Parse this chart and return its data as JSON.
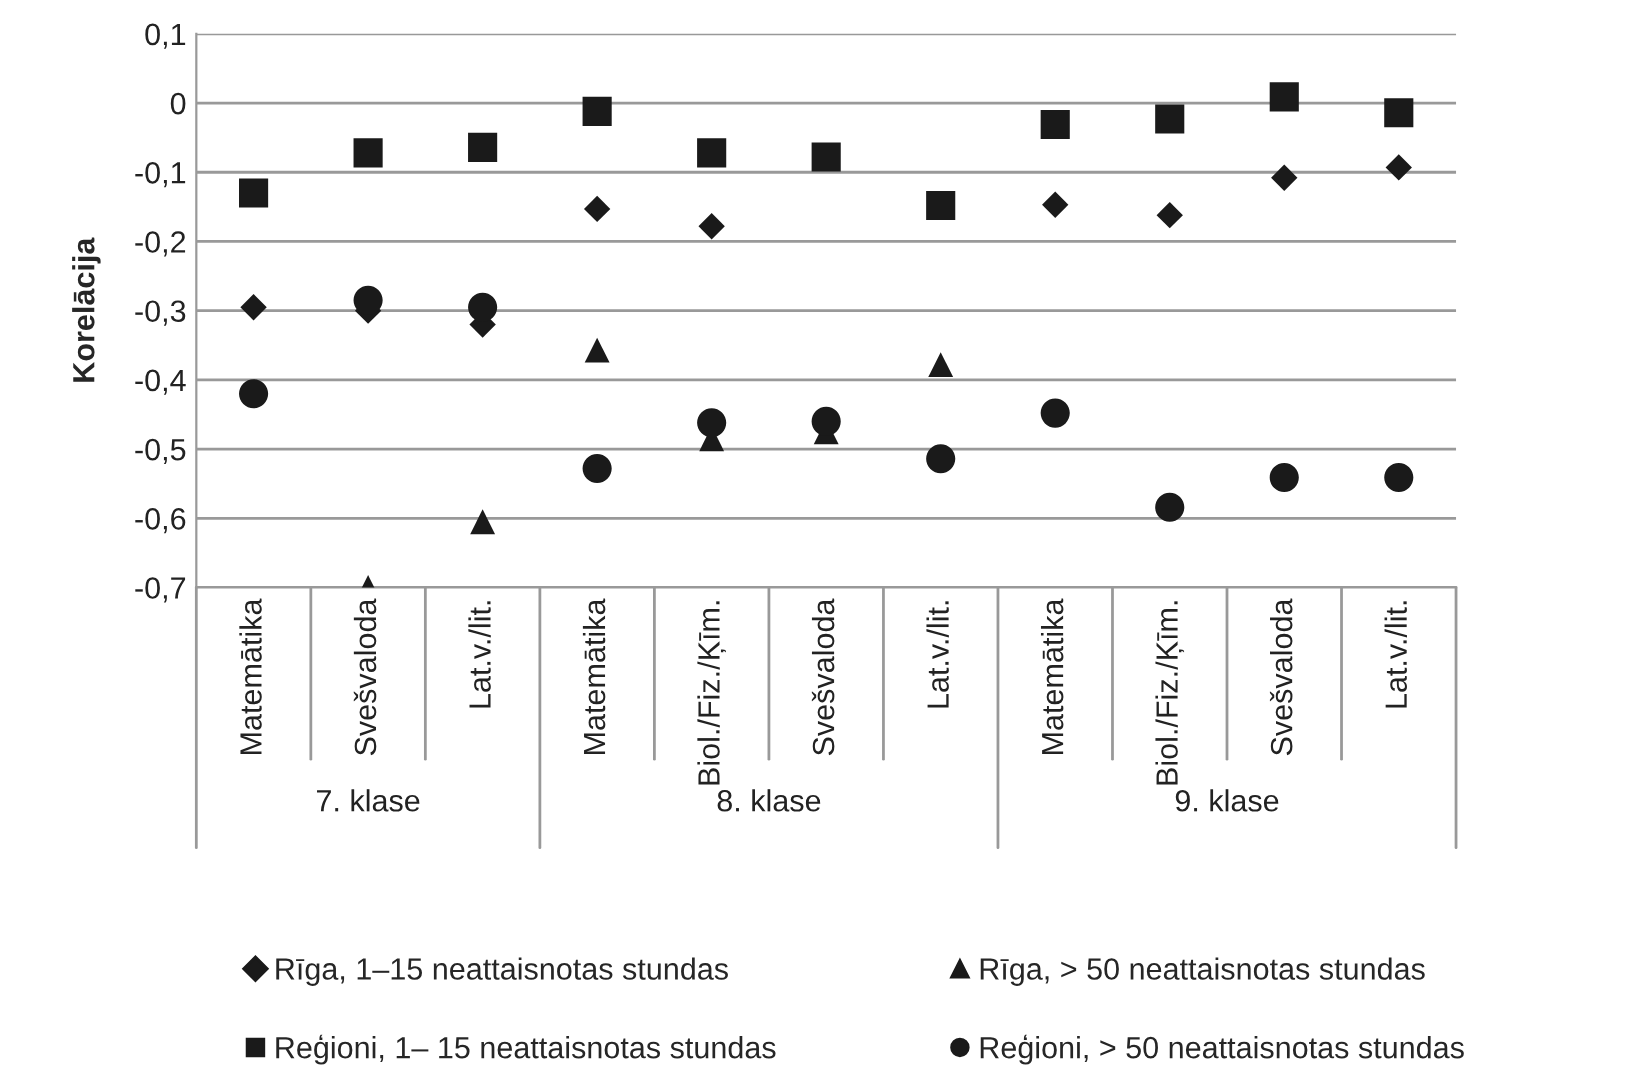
{
  "chart_data": {
    "type": "scatter",
    "ylabel": "Korelācija",
    "categories": [
      "Matemātika",
      "Svešvaloda",
      "Lat.v./lit.",
      "Matemātika",
      "Biol./Fiz./Ķīm.",
      "Svešvaloda",
      "Lat.v./lit.",
      "Matemātika",
      "Biol./Fiz./Ķīm.",
      "Svešvaloda",
      "Lat.v./lit."
    ],
    "series": [
      {
        "name": "Rīga, 1–15 neattaisnotas stundas",
        "color": "#1a1a1a",
        "marker": "diamond",
        "values": [
          -0.295,
          -0.3,
          -0.32,
          -0.153,
          -0.178,
          null,
          null,
          -0.147,
          -0.162,
          -0.108,
          -0.093
        ]
      },
      {
        "name": "Rīga, > 50 neattaisnotas stundas",
        "color": "#1a1a1a",
        "marker": "triangle",
        "values": [
          null,
          -0.7,
          -0.605,
          -0.357,
          -0.485,
          -0.475,
          -0.378,
          null,
          null,
          null,
          null
        ]
      },
      {
        "name": "Reģioni, 1– 15 neattaisnotas stundas",
        "color": "#1a1a1a",
        "marker": "square",
        "values": [
          -0.13,
          -0.072,
          -0.064,
          -0.012,
          -0.072,
          -0.078,
          -0.148,
          -0.031,
          -0.023,
          0.009,
          -0.014
        ]
      },
      {
        "name": "Reģioni, > 50 neattaisnotas stundas",
        "color": "#1a1a1a",
        "marker": "circle",
        "values": [
          -0.42,
          -0.285,
          -0.295,
          -0.528,
          -0.462,
          -0.46,
          -0.514,
          -0.448,
          -0.584,
          -0.541,
          -0.541
        ]
      }
    ],
    "annotations": [
      "7. klase",
      "8. klase",
      "9. klase"
    ],
    "ylim": [
      -0.7,
      0.1
    ],
    "yticks": [
      {
        "value": -0.7,
        "label": "-0,7"
      },
      {
        "value": -0.6,
        "label": "-0,6"
      },
      {
        "value": -0.5,
        "label": "-0,5"
      },
      {
        "value": -0.4,
        "label": "-0,4"
      },
      {
        "value": -0.3,
        "label": "-0,3"
      },
      {
        "value": -0.2,
        "label": "-0,2"
      },
      {
        "value": -0.1,
        "label": "-0,1"
      },
      0,
      {
        "value": 0.1,
        "label": "0,1"
      }
    ],
    "grid": "y",
    "legend": "bottom"
  }
}
